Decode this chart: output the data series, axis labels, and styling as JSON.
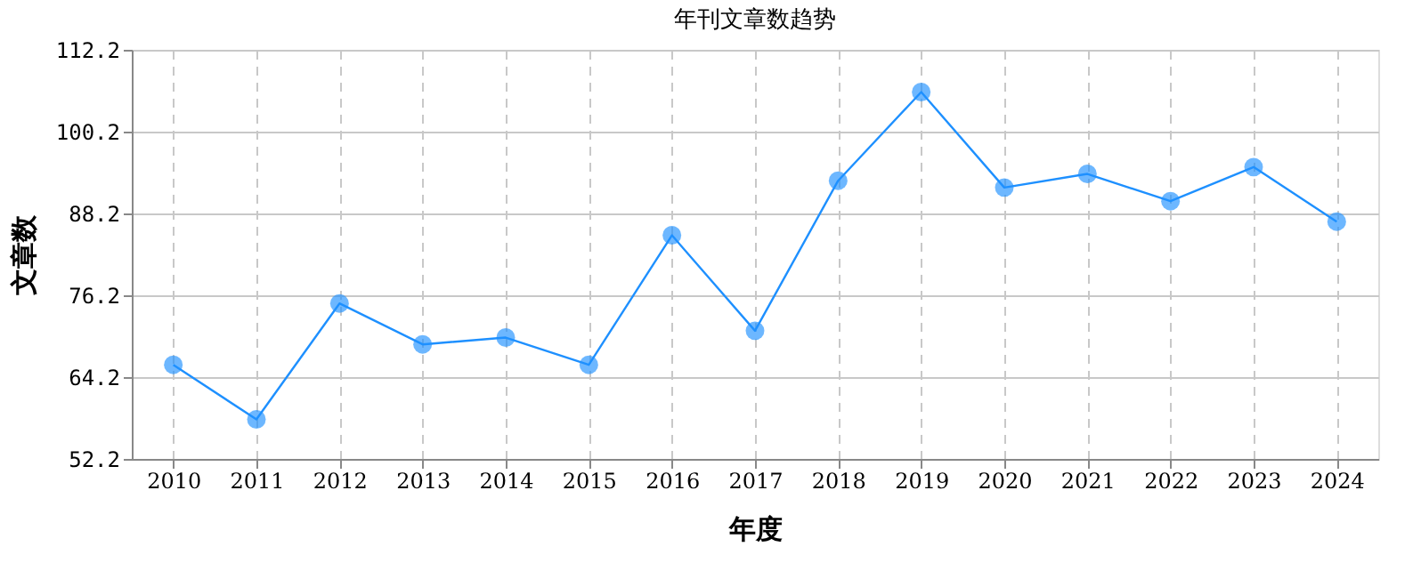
{
  "chart_data": {
    "type": "line",
    "title": "年刊文章数趋势",
    "xlabel": "年度",
    "ylabel": "文章数",
    "categories": [
      "2010",
      "2011",
      "2012",
      "2013",
      "2014",
      "2015",
      "2016",
      "2017",
      "2018",
      "2019",
      "2020",
      "2021",
      "2022",
      "2023",
      "2024"
    ],
    "series": [
      {
        "color": "#1e90ff",
        "values": [
          66,
          58,
          75,
          69,
          70,
          66,
          85,
          71,
          93,
          106,
          92,
          94,
          90,
          95,
          87
        ]
      }
    ],
    "ylim": [
      52.2,
      112.2
    ],
    "yticks": [
      52.2,
      64.2,
      76.2,
      88.2,
      100.2,
      112.2
    ],
    "grid": true,
    "legend": false,
    "marker": "circle",
    "line_style": "solid"
  }
}
